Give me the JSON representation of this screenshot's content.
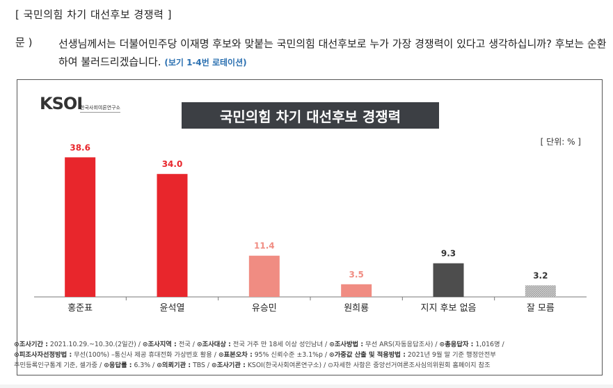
{
  "heading": "[ 국민의힘 차기 대선후보 경쟁력 ]",
  "question": {
    "label": "문 )",
    "text": "선생님께서는 더불어민주당 이재명 후보와 맞붙는 국민의힘 대선후보로 누가 가장 경쟁력이 있다고 생각하십니까? 후보는 순환하여 불러드리겠습니다.",
    "note": "(보기 1-4번 로테이션)"
  },
  "logo": {
    "main": "KSOI",
    "sub": "한국사회여론연구소"
  },
  "unit": "[ 단위: % ]",
  "chart_data": {
    "type": "bar",
    "title": "국민의힘 차기 대선후보 경쟁력",
    "categories": [
      "홍준표",
      "윤석열",
      "유승민",
      "원희룡",
      "지지 후보 없음",
      "잘 모름"
    ],
    "values": [
      38.6,
      34.0,
      11.4,
      3.5,
      9.3,
      3.2
    ],
    "value_labels": [
      "38.6",
      "34.0",
      "11.4",
      "3.5",
      "9.3",
      "3.2"
    ],
    "ylim": [
      0,
      40
    ],
    "grid": false,
    "colors": {
      "highlight": "#e8262c",
      "highlight_label": "#e8262c",
      "light": "#f08c82",
      "light_label": "#f08c82",
      "neutral": "#4d4d4d",
      "neutral_label": "#333333",
      "hatched": "#b8b8b8",
      "hatched_label": "#333333"
    },
    "bar_styles": [
      "highlight",
      "highlight",
      "light",
      "light",
      "neutral",
      "hatched"
    ]
  },
  "footer": {
    "line1": [
      {
        "k": "조사기간 :",
        "v": "2021.10.29.~10.30.(2일간)"
      },
      {
        "k": "조사지역 :",
        "v": "전국"
      },
      {
        "k": "조사대상 :",
        "v": "전국 거주 만 18세 이상 성인남녀"
      },
      {
        "k": "조사방법 :",
        "v": "무선 ARS(자동응답조사)"
      },
      {
        "k": "총응답자 :",
        "v": "1,016명"
      }
    ],
    "line2": [
      {
        "k": "피조사자선정방법 :",
        "v": "무선(100%) –통신사 제공 휴대전화 가상번호 활용"
      },
      {
        "k": "표본오차 :",
        "v": "95% 신뢰수준 ±3.1%p"
      },
      {
        "k": "가중값 산출 및 적용방법 :",
        "v": "2021년 9월 말 기준 행정안전부"
      }
    ],
    "line3_lead": "주민등록인구통계 기준, 셀가중",
    "line3": [
      {
        "k": "응답률 :",
        "v": "6.3%"
      },
      {
        "k": "의뢰기관 :",
        "v": "TBS"
      },
      {
        "k": "조사기관 :",
        "v": "KSOI(한국사회여론연구소)"
      }
    ],
    "line3_tail": "자세한 사항은 중앙선거여론조사심의위원회 홈페이지 참조"
  }
}
